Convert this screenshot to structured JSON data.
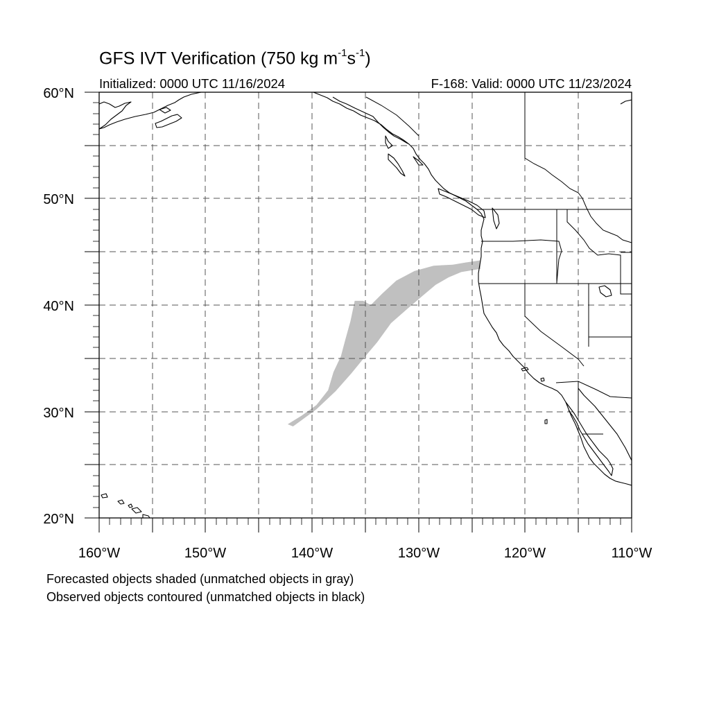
{
  "title": {
    "prefix": "GFS IVT Verification (750 kg m",
    "sup1": "-1",
    "middle": "s",
    "sup2": "-1",
    "suffix": ")"
  },
  "initialized": "Initialized: 0000 UTC 11/16/2024",
  "valid": "F-168: Valid: 0000 UTC 11/23/2024",
  "footer": {
    "line1": "Forecasted objects shaded (unmatched objects in gray)",
    "line2": "Observed objects contoured (unmatched objects in black)"
  },
  "axes": {
    "lon_min": -160,
    "lon_max": -110,
    "lat_min": 20,
    "lat_max": 60,
    "lon_labels": [
      "160°W",
      "150°W",
      "140°W",
      "130°W",
      "120°W",
      "110°W"
    ],
    "lat_labels": [
      "20°N",
      "30°N",
      "40°N",
      "50°N"
    ],
    "lat_top_label": "60°N",
    "grid": "dashed every 5°"
  },
  "colors": {
    "forecast_unmatched": "#c0c0c0",
    "observed_unmatched": "#000000",
    "grid": "#555555"
  },
  "forecast_object": {
    "label": "Forecasted object (unmatched, gray)",
    "outline_lonlat": [
      [
        -142.3,
        28.8
      ],
      [
        -141.0,
        29.6
      ],
      [
        -139.6,
        30.6
      ],
      [
        -138.5,
        32.0
      ],
      [
        -138.0,
        33.7
      ],
      [
        -137.3,
        35.2
      ],
      [
        -136.9,
        36.7
      ],
      [
        -136.4,
        38.5
      ],
      [
        -136.0,
        40.4
      ],
      [
        -135.2,
        40.4
      ],
      [
        -134.5,
        40.0
      ],
      [
        -133.4,
        41.1
      ],
      [
        -132.1,
        42.3
      ],
      [
        -130.4,
        43.2
      ],
      [
        -128.6,
        43.7
      ],
      [
        -126.8,
        43.8
      ],
      [
        -125.6,
        44.0
      ],
      [
        -124.2,
        44.2
      ],
      [
        -124.2,
        43.4
      ],
      [
        -126.0,
        43.1
      ],
      [
        -127.2,
        42.6
      ],
      [
        -128.4,
        41.9
      ],
      [
        -129.6,
        40.9
      ],
      [
        -131.0,
        39.7
      ],
      [
        -132.6,
        38.3
      ],
      [
        -133.9,
        36.5
      ],
      [
        -135.0,
        35.2
      ],
      [
        -136.3,
        33.6
      ],
      [
        -137.8,
        31.9
      ],
      [
        -139.6,
        30.2
      ],
      [
        -141.1,
        29.1
      ],
      [
        -141.8,
        28.6
      ]
    ]
  }
}
